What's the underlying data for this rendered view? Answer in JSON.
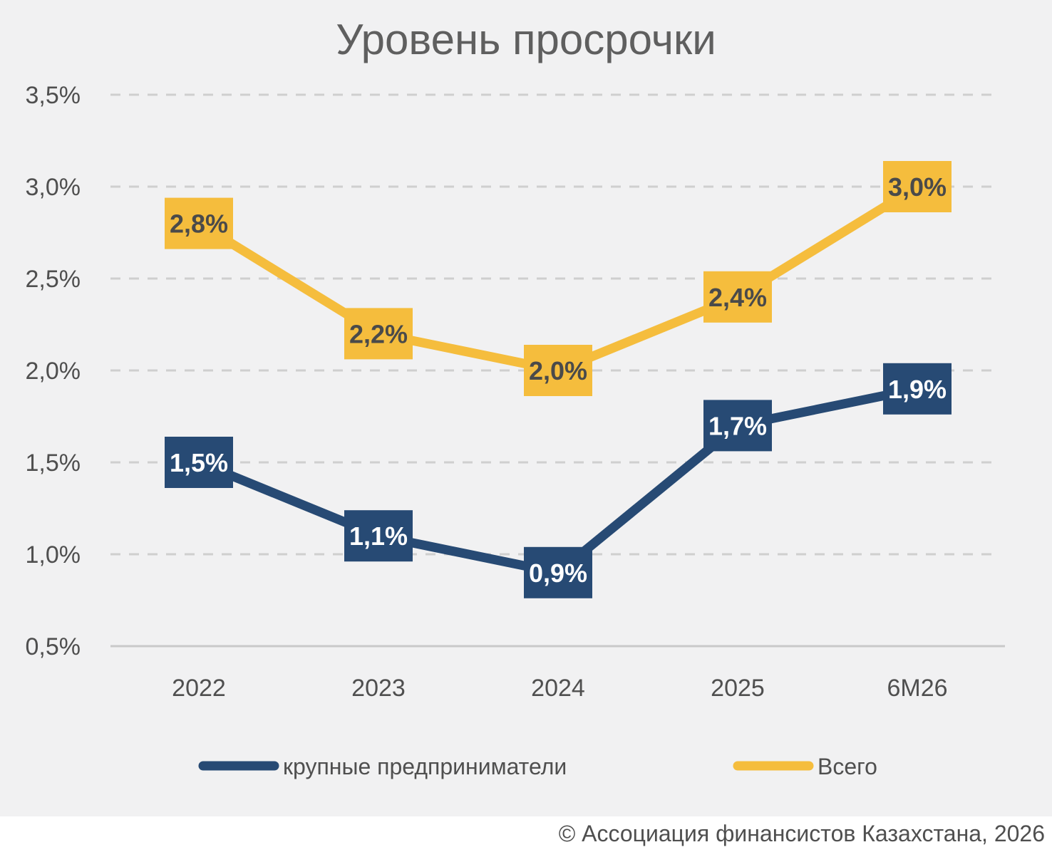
{
  "chart_data": {
    "type": "line",
    "title": "Уровень просрочки",
    "categories": [
      "2022",
      "2023",
      "2024",
      "2025",
      "6М26"
    ],
    "y_tick_labels": [
      "0,5%",
      "1,0%",
      "1,5%",
      "2,0%",
      "2,5%",
      "3,0%",
      "3,5%"
    ],
    "y_ticks": [
      0.5,
      1.0,
      1.5,
      2.0,
      2.5,
      3.0,
      3.5
    ],
    "ylim": [
      0.5,
      3.5
    ],
    "grid": "horizontal-dashed",
    "legend_position": "bottom",
    "series": [
      {
        "name": "крупные предприниматели",
        "color": "#274a74",
        "label_text_color": "#ffffff",
        "values": [
          1.5,
          1.1,
          0.9,
          1.7,
          1.9
        ],
        "labels": [
          "1,5%",
          "1,1%",
          "0,9%",
          "1,7%",
          "1,9%"
        ]
      },
      {
        "name": "Всего",
        "color": "#f5bd3d",
        "label_text_color": "#4a4a4a",
        "values": [
          2.8,
          2.2,
          2.0,
          2.4,
          3.0
        ],
        "labels": [
          "2,8%",
          "2,2%",
          "2,0%",
          "2,4%",
          "3,0%"
        ]
      }
    ]
  },
  "footer": {
    "source": "© Ассоциация финансистов Казахстана, 2026"
  }
}
